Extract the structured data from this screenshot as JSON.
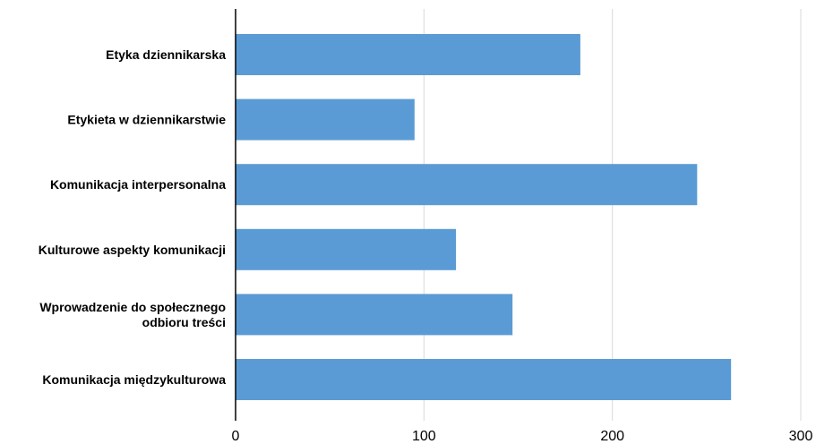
{
  "chart_data": {
    "type": "bar",
    "orientation": "horizontal",
    "categories": [
      "Etyka dziennikarska",
      "Etykieta w dziennikarstwie",
      "Komunikacja interpersonalna",
      "Kulturowe aspekty komunikacji",
      "Wprowadzenie do społecznego odbioru treści",
      "Komunikacja międzykulturowa"
    ],
    "category_label_lines": [
      [
        "Etyka dziennikarska"
      ],
      [
        "Etykieta w dziennikarstwie"
      ],
      [
        "Komunikacja interpersonalna"
      ],
      [
        "Kulturowe aspekty komunikacji"
      ],
      [
        "Wprowadzenie do społecznego",
        "odbioru treści"
      ],
      [
        "Komunikacja międzykulturowa"
      ]
    ],
    "values": [
      183,
      95,
      245,
      117,
      147,
      263
    ],
    "xlim": [
      0,
      300
    ],
    "xticks": [
      0,
      100,
      200,
      300
    ],
    "xtick_labels": [
      "0",
      "100",
      "200",
      "300"
    ],
    "title": "",
    "xlabel": "",
    "ylabel": "",
    "grid": "vertical",
    "legend": "none",
    "bar_color": "#5b9bd5",
    "grid_color": "#d9d9d9",
    "axis_color": "#000000"
  }
}
